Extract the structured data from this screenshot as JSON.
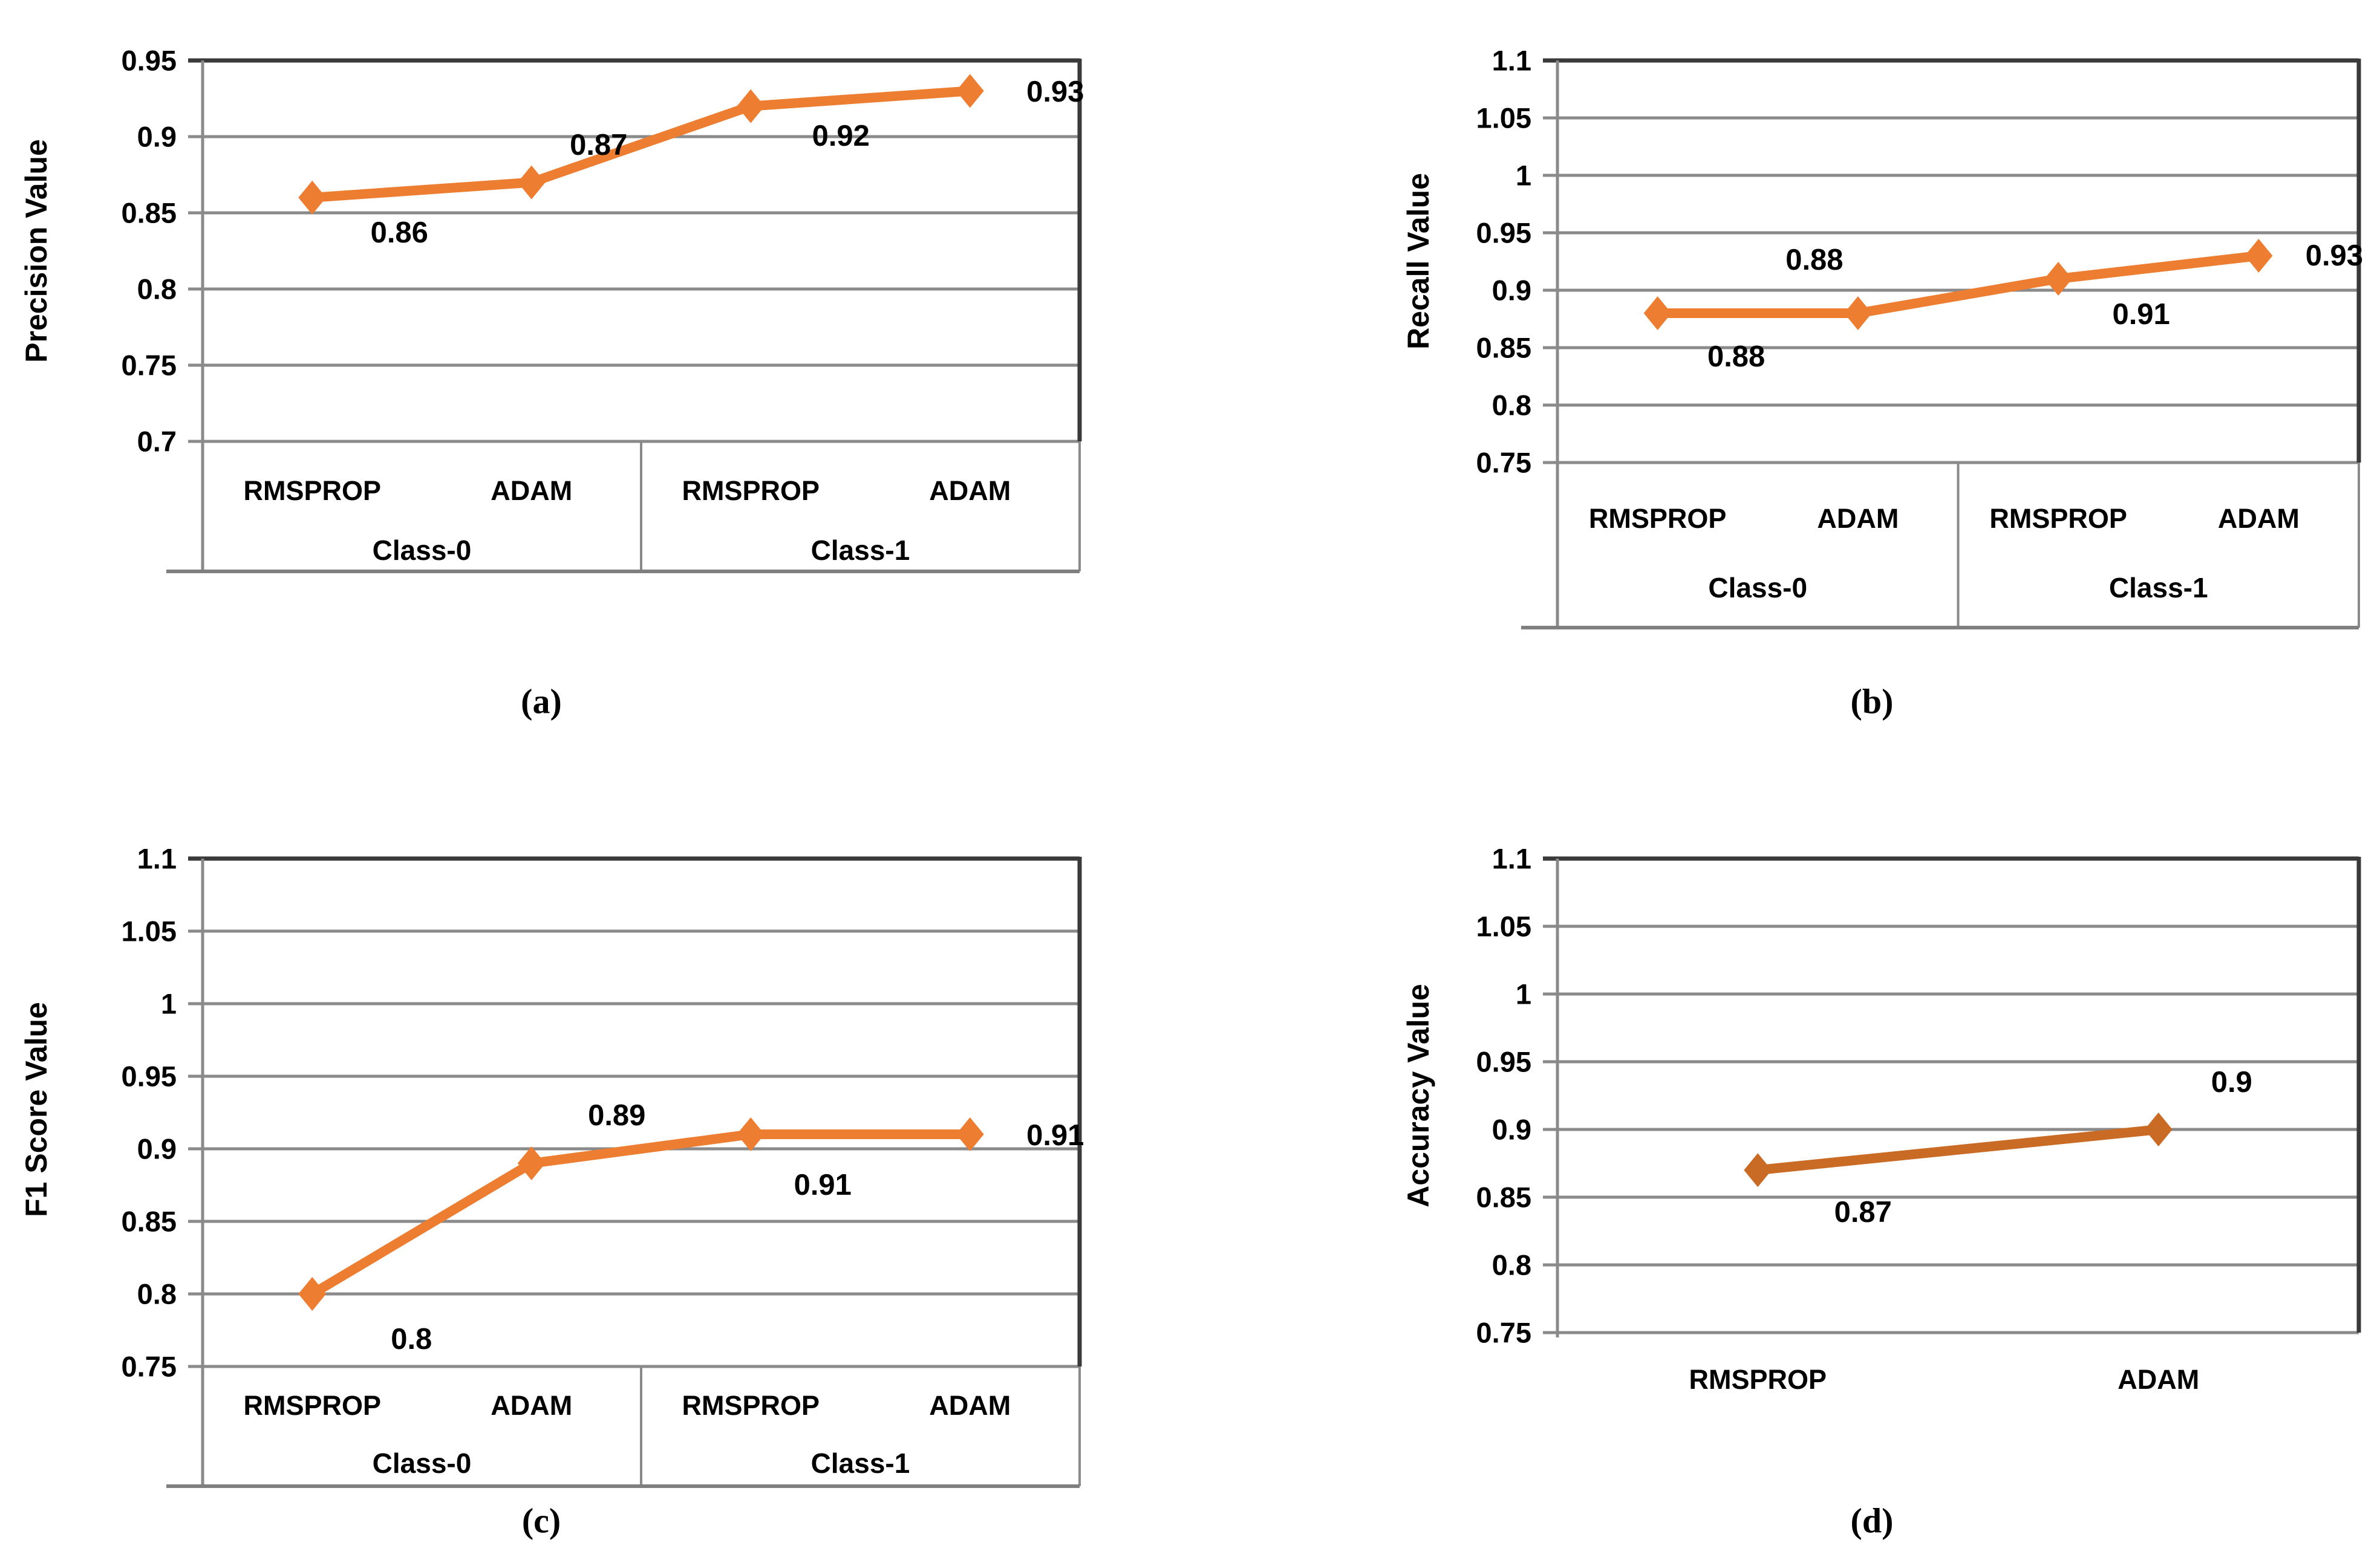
{
  "chart_data": [
    {
      "type": "line",
      "panel": "a",
      "caption": "(a)",
      "ylabel": "Precision Value",
      "ymax": 0.95,
      "ymin": 0.7,
      "ystep": 0.05,
      "ytick_labels": [
        "0.95",
        "0.9",
        "0.85",
        "0.8",
        "0.75",
        "0.7"
      ],
      "groups": [
        {
          "label": "Class-0",
          "categories": [
            "RMSPROP",
            "ADAM"
          ]
        },
        {
          "label": "Class-1",
          "categories": [
            "RMSPROP",
            "ADAM"
          ]
        }
      ],
      "values": [
        0.86,
        0.87,
        0.92,
        0.93
      ],
      "point_labels": [
        "0.86",
        "0.87",
        "0.92",
        "0.93"
      ],
      "line_color": "#ED7D31",
      "grid_color": "#8A8A8A",
      "border_color": "#3A3A3A",
      "legend": "none",
      "grid": "on"
    },
    {
      "type": "line",
      "panel": "b",
      "caption": "(b)",
      "ylabel": "Recall Value",
      "ymax": 1.1,
      "ymin": 0.75,
      "ystep": 0.05,
      "ytick_labels": [
        "1.1",
        "1.05",
        "1",
        "0.95",
        "0.9",
        "0.85",
        "0.8",
        "0.75"
      ],
      "groups": [
        {
          "label": "Class-0",
          "categories": [
            "RMSPROP",
            "ADAM"
          ]
        },
        {
          "label": "Class-1",
          "categories": [
            "RMSPROP",
            "ADAM"
          ]
        }
      ],
      "values": [
        0.88,
        0.88,
        0.91,
        0.93
      ],
      "point_labels": [
        "0.88",
        "0.88",
        "0.91",
        "0.93"
      ],
      "line_color": "#ED7D31",
      "grid_color": "#8A8A8A",
      "border_color": "#3A3A3A",
      "legend": "none",
      "grid": "on"
    },
    {
      "type": "line",
      "panel": "c",
      "caption": "(c)",
      "ylabel": "F1 Score Value",
      "ymax": 1.1,
      "ymin": 0.75,
      "ystep": 0.05,
      "ytick_labels": [
        "1.1",
        "1.05",
        "1",
        "0.95",
        "0.9",
        "0.85",
        "0.8",
        "0.75"
      ],
      "groups": [
        {
          "label": "Class-0",
          "categories": [
            "RMSPROP",
            "ADAM"
          ]
        },
        {
          "label": "Class-1",
          "categories": [
            "RMSPROP",
            "ADAM"
          ]
        }
      ],
      "values": [
        0.8,
        0.89,
        0.91,
        0.91
      ],
      "point_labels": [
        "0.8",
        "0.89",
        "0.91",
        "0.91"
      ],
      "line_color": "#ED7D31",
      "grid_color": "#8A8A8A",
      "border_color": "#3A3A3A",
      "legend": "none",
      "grid": "on"
    },
    {
      "type": "line",
      "panel": "d",
      "caption": "(d)",
      "ylabel": "Accuracy Value",
      "ymax": 1.1,
      "ymin": 0.75,
      "ystep": 0.05,
      "ytick_labels": [
        "1.1",
        "1.05",
        "1",
        "0.95",
        "0.9",
        "0.85",
        "0.8",
        "0.75"
      ],
      "groups": [
        {
          "label": "",
          "categories": [
            "RMSPROP",
            "ADAM"
          ]
        }
      ],
      "values": [
        0.87,
        0.9
      ],
      "point_labels": [
        "0.87",
        "0.9"
      ],
      "line_color": "#C96A25",
      "grid_color": "#8A8A8A",
      "border_color": "#3A3A3A",
      "legend": "none",
      "grid": "on"
    }
  ]
}
